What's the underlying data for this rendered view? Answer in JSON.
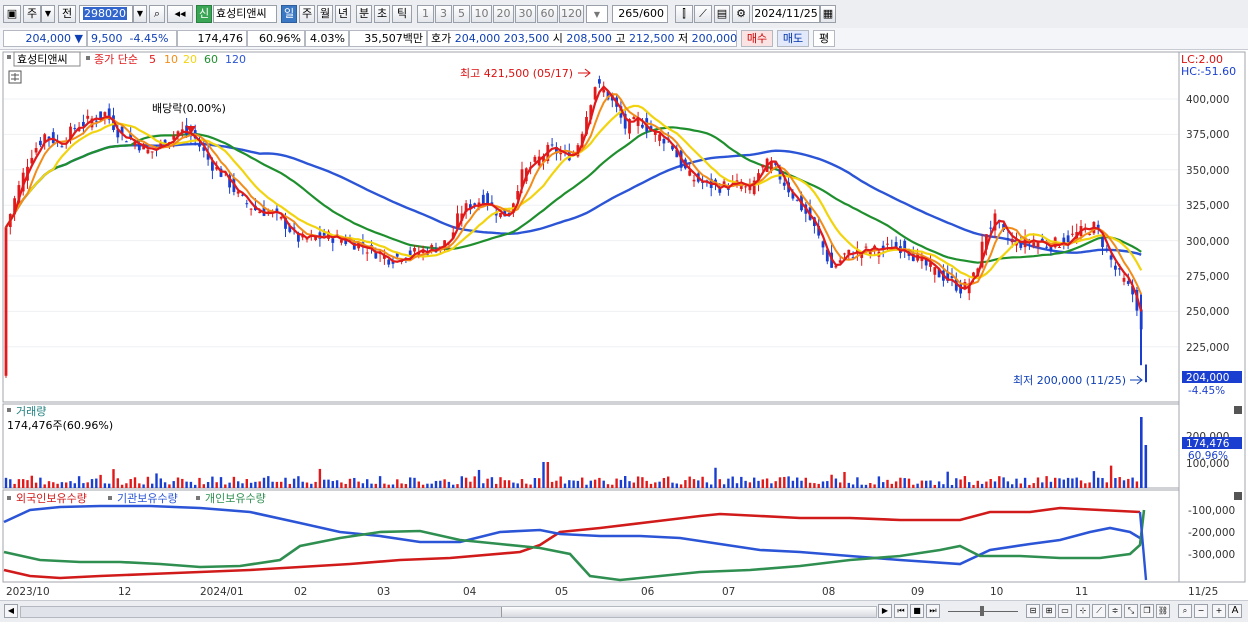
{
  "toolbar": {
    "period_label": "주",
    "mode_label": "전",
    "code": "298020",
    "market_badge": "신",
    "stock_name": "효성티앤씨",
    "period_buttons": [
      "일",
      "주",
      "월",
      "년",
      "분",
      "초",
      "틱"
    ],
    "interval_buttons": [
      "1",
      "3",
      "5",
      "10",
      "20",
      "30",
      "60",
      "120"
    ],
    "count_value": "265",
    "count_total": "/600",
    "date_value": "2024/11/25"
  },
  "quote": {
    "price": "204,000",
    "change": "9,500",
    "change_pct": "-4.45%",
    "volume": "174,476",
    "volume_ratio": "60.96%",
    "turnover_rate": "4.03%",
    "amount": "35,507백만",
    "bid_label": "호가",
    "bid1": "204,000",
    "bid2": "203,500",
    "open_label": "시",
    "open": "208,500",
    "high_label": "고",
    "high": "212,500",
    "low_label": "저",
    "low": "200,000",
    "buy_button": "매수",
    "sell_button": "매도",
    "eval_button": "평"
  },
  "price_panel": {
    "legend_name": "효성티앤씨",
    "ma_label": "종가 단순",
    "ma_periods": [
      {
        "label": "5",
        "color": "#e0191b"
      },
      {
        "label": "10",
        "color": "#f28c18"
      },
      {
        "label": "20",
        "color": "#f2d40e"
      },
      {
        "label": "60",
        "color": "#1f8f2e"
      },
      {
        "label": "120",
        "color": "#2b55d6"
      }
    ],
    "lc_label": "LC:2.00",
    "hc_label": "HC:-51.60",
    "dividend_label": "배당락(0.00%)",
    "high_annotation": "최고 421,500 (05/17)",
    "low_annotation": "최저 200,000 (11/25)",
    "y_ticks": [
      "400,000",
      "375,000",
      "350,000",
      "325,000",
      "300,000",
      "275,000",
      "250,000",
      "225,000"
    ],
    "current_price_tag": "204,000",
    "current_change_tag": "-4.45%"
  },
  "volume_panel": {
    "title": "거래량",
    "value_label": "174,476주(60.96%)",
    "y_ticks": [
      "200,000",
      "100,000"
    ],
    "current_tag": "174,476",
    "current_pct": "60.96%"
  },
  "holding_panel": {
    "legends": [
      {
        "label": "외국인보유수량",
        "color": "#d11a1a"
      },
      {
        "label": "기관보유수량",
        "color": "#2b55d6"
      },
      {
        "label": "개인보유수량",
        "color": "#2f8f50"
      }
    ],
    "y_ticks": [
      "-100,000",
      "-200,000",
      "-300,000"
    ]
  },
  "x_axis": {
    "labels": [
      "2023/10",
      "12",
      "2024/01",
      "02",
      "03",
      "04",
      "05",
      "06",
      "07",
      "08",
      "09",
      "10",
      "11",
      "11/25"
    ]
  },
  "colors": {
    "up": "#e0191b",
    "down": "#1a3fd0",
    "accent": "#3b78c4"
  }
}
